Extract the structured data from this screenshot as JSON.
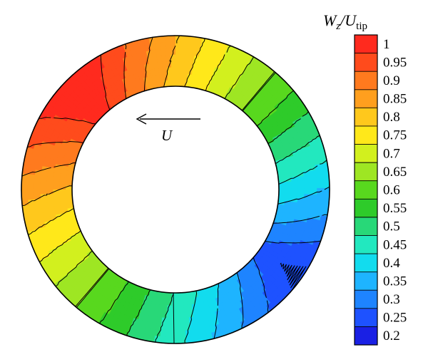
{
  "chart_data": {
    "type": "heatmap",
    "title": "",
    "colorbar": {
      "title_main": "W",
      "title_main_sub": "z",
      "title_sep": "/U",
      "title_sub": "tip",
      "ticks": [
        "1",
        "0.95",
        "0.9",
        "0.85",
        "0.8",
        "0.75",
        "0.7",
        "0.65",
        "0.6",
        "0.55",
        "0.5",
        "0.45",
        "0.4",
        "0.35",
        "0.3",
        "0.25",
        "0.2"
      ],
      "levels": [
        1.0,
        0.95,
        0.9,
        0.85,
        0.8,
        0.75,
        0.7,
        0.65,
        0.6,
        0.55,
        0.5,
        0.45,
        0.4,
        0.35,
        0.3,
        0.25,
        0.2
      ],
      "colors": [
        "#ff2a1e",
        "#ff4b1c",
        "#ff7a1e",
        "#ff9f1e",
        "#ffc81c",
        "#ffe81a",
        "#d2f01e",
        "#9ee623",
        "#58d81e",
        "#2ecb2a",
        "#28d878",
        "#22e8bf",
        "#12dcee",
        "#1eb4ff",
        "#1e84ff",
        "#1e52ff",
        "#1a20e4"
      ],
      "range": [
        0.2,
        1.0
      ]
    },
    "annulus": {
      "max_value": 1.0,
      "max_angle_deg": 135,
      "min_value": 0.2,
      "min_angle_deg": -35
    },
    "annotation": {
      "arrow_direction": "left",
      "label": "U"
    }
  }
}
